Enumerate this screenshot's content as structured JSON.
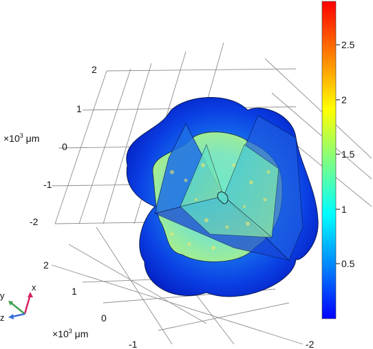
{
  "plot": {
    "unit_prefix": "×10",
    "unit_exponent": "3",
    "unit_symbol": " μm",
    "vertical_axis_ticks": [
      "2",
      "1",
      "0",
      "-1",
      "-2"
    ],
    "depth_axis_ticks": [
      "2",
      "1",
      "0",
      "-1"
    ],
    "horizontal_axis_ticks": [
      "-2"
    ]
  },
  "colorbar": {
    "ticks": [
      "2.5",
      "2",
      "1.5",
      "1",
      "0.5"
    ],
    "range": [
      0,
      2.9
    ],
    "colormap": "rainbow",
    "colors": [
      "#0000ff",
      "#0080ff",
      "#00ffff",
      "#80ff80",
      "#ffff00",
      "#ff8000",
      "#ff0000"
    ]
  },
  "triad": {
    "x_label": "x",
    "y_label": "y",
    "z_label": "z",
    "x_color": "#d6245e",
    "y_color": "#3fa34d",
    "z_color": "#3a6fd8"
  }
}
